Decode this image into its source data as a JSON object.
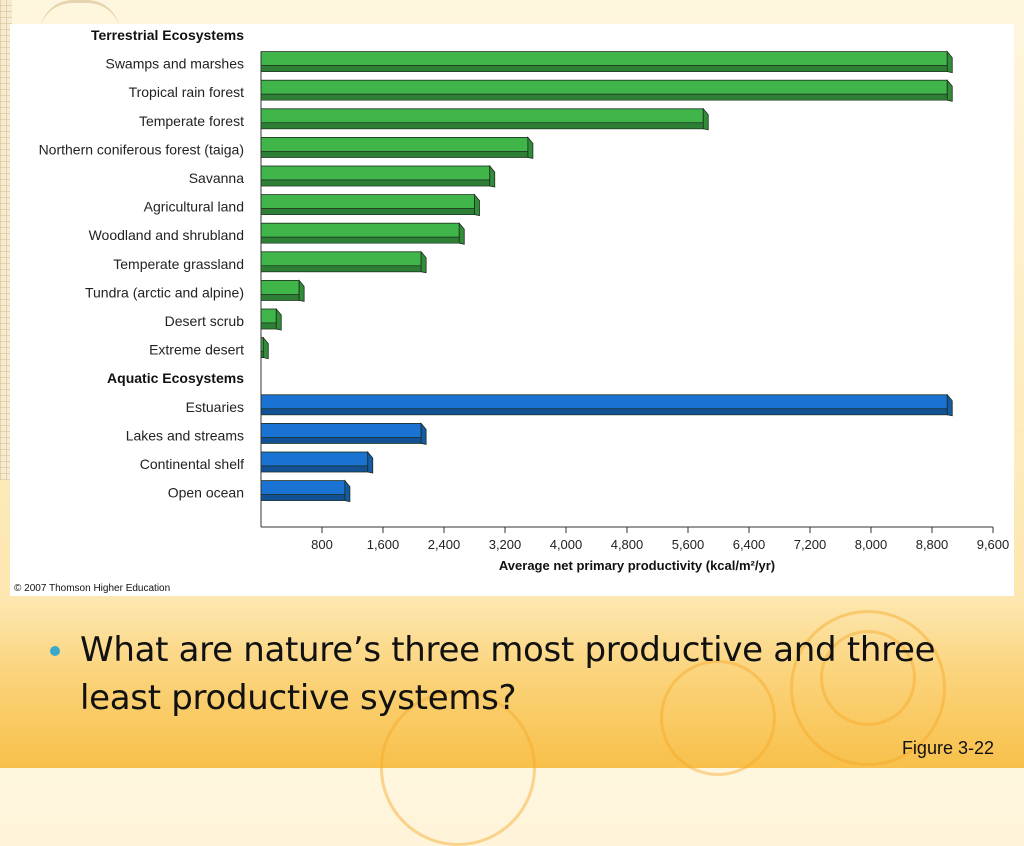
{
  "chart_data": {
    "type": "bar",
    "orientation": "horizontal",
    "groups": [
      {
        "label": "Terrestrial Ecosystems",
        "color": "#3fb54a",
        "items": [
          {
            "category": "Swamps and marshes",
            "value": 9000
          },
          {
            "category": "Tropical rain forest",
            "value": 9000
          },
          {
            "category": "Temperate forest",
            "value": 5800
          },
          {
            "category": "Northern coniferous forest (taiga)",
            "value": 3500
          },
          {
            "category": "Savanna",
            "value": 3000
          },
          {
            "category": "Agricultural land",
            "value": 2800
          },
          {
            "category": "Woodland and shrubland",
            "value": 2600
          },
          {
            "category": "Temperate grassland",
            "value": 2100
          },
          {
            "category": "Tundra (arctic and alpine)",
            "value": 500
          },
          {
            "category": "Desert scrub",
            "value": 200
          },
          {
            "category": "Extreme desert",
            "value": 30
          }
        ]
      },
      {
        "label": "Aquatic Ecosystems",
        "color": "#1a73d2",
        "items": [
          {
            "category": "Estuaries",
            "value": 9000
          },
          {
            "category": "Lakes and streams",
            "value": 2100
          },
          {
            "category": "Continental shelf",
            "value": 1400
          },
          {
            "category": "Open ocean",
            "value": 1100
          }
        ]
      }
    ],
    "xlabel": "Average net primary productivity (kcal/m²/yr)",
    "xlim": [
      0,
      9600
    ],
    "xticks": [
      800,
      1600,
      2400,
      3200,
      4000,
      4800,
      5600,
      6400,
      7200,
      8000,
      8800,
      9600
    ],
    "xtick_labels": [
      "800",
      "1,600",
      "2,400",
      "3,200",
      "4,000",
      "4,800",
      "5,600",
      "6,400",
      "7,200",
      "8,000",
      "8,800",
      "9,600"
    ],
    "grid": false,
    "legend": "none"
  },
  "copyright": "© 2007 Thomson Higher Education",
  "bullet": "What are nature’s three most productive and three least productive systems?",
  "figure_label": "Figure 3-22",
  "colors": {
    "terrestrial": "#3fb54a",
    "aquatic": "#1a73d2",
    "accent_bullet": "#3aa9c9",
    "background_warm": "#fbd37a"
  }
}
